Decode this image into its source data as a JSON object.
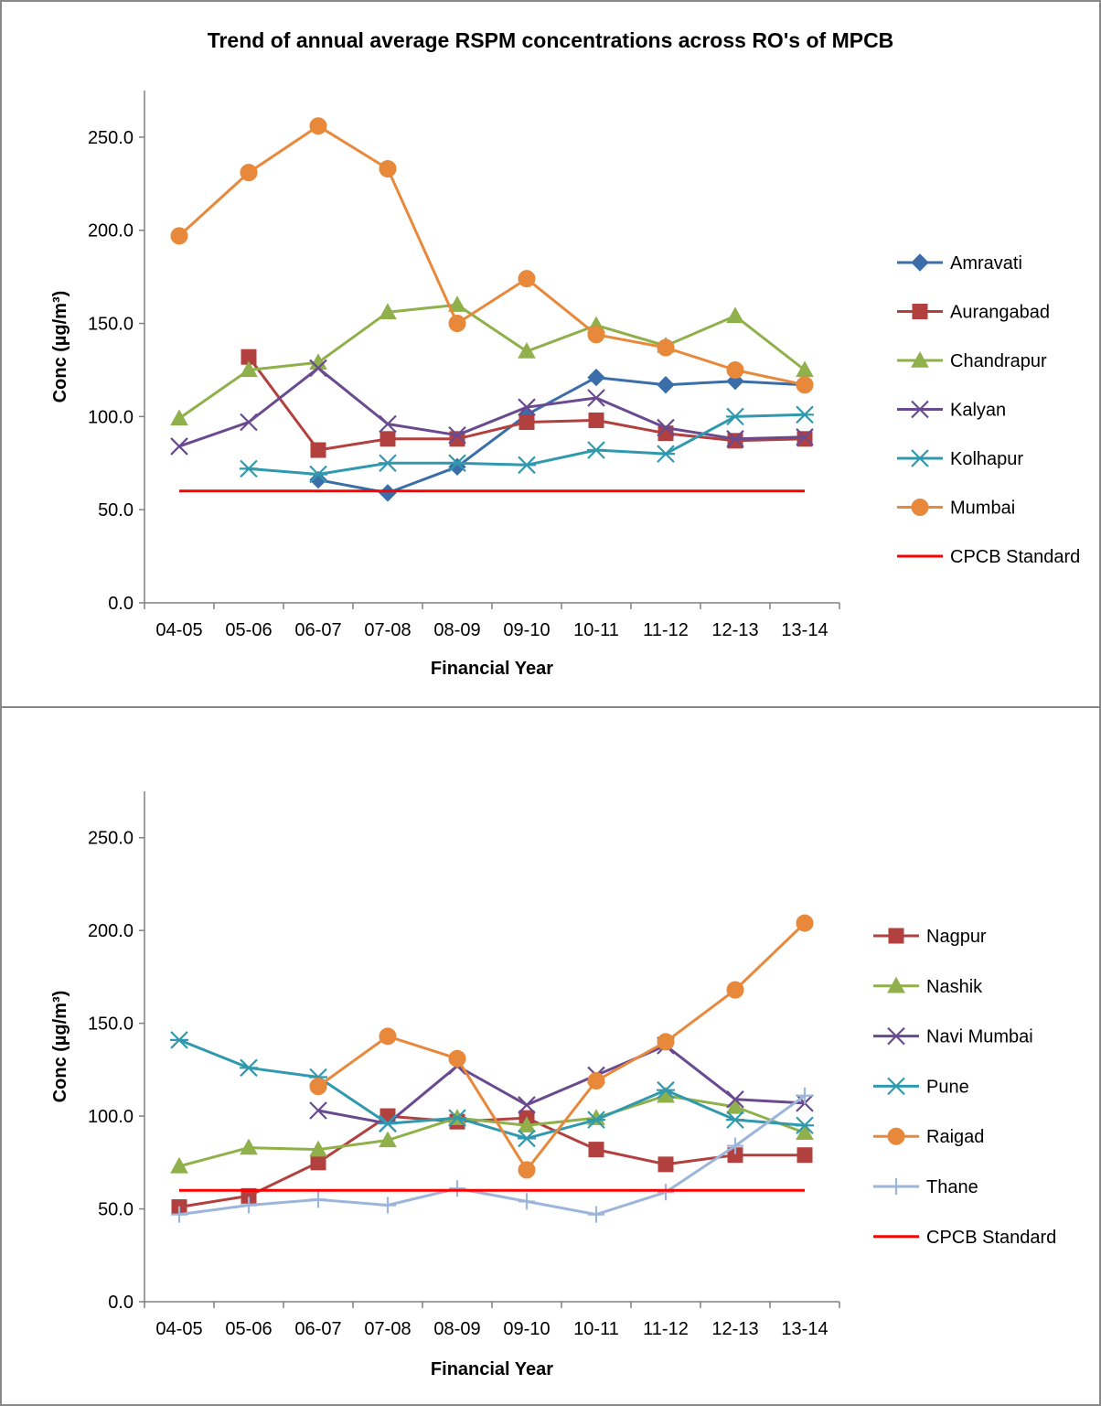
{
  "title": "Trend of annual average RSPM concentrations across RO's of MPCB",
  "chart_data": [
    {
      "type": "line",
      "title": "Trend of annual average RSPM concentrations across RO's of MPCB",
      "xlabel": "Financial Year",
      "ylabel": "Conc (µg/m³)",
      "ylim": [
        0,
        275
      ],
      "yticks": [
        "0.0",
        "50.0",
        "100.0",
        "150.0",
        "200.0",
        "250.0"
      ],
      "categories": [
        "04-05",
        "05-06",
        "06-07",
        "07-08",
        "08-09",
        "09-10",
        "10-11",
        "11-12",
        "12-13",
        "13-14"
      ],
      "grid": false,
      "legend_position": "right",
      "series": [
        {
          "name": "Amravati",
          "color": "#3B6EA8",
          "marker": "diamond",
          "values": [
            null,
            null,
            66,
            59,
            73,
            101,
            121,
            117,
            119,
            117
          ]
        },
        {
          "name": "Aurangabad",
          "color": "#B2403E",
          "marker": "square",
          "values": [
            null,
            132,
            82,
            88,
            88,
            97,
            98,
            91,
            87,
            88
          ]
        },
        {
          "name": "Chandrapur",
          "color": "#8FB04A",
          "marker": "triangle",
          "values": [
            99,
            125,
            129,
            156,
            160,
            135,
            149,
            138,
            154,
            125
          ]
        },
        {
          "name": "Kalyan",
          "color": "#6A4A8F",
          "marker": "x",
          "values": [
            84,
            97,
            126,
            96,
            90,
            105,
            110,
            94,
            88,
            89
          ]
        },
        {
          "name": "Kolhapur",
          "color": "#3199AE",
          "marker": "star",
          "values": [
            null,
            72,
            69,
            75,
            75,
            74,
            82,
            80,
            100,
            101
          ]
        },
        {
          "name": "Mumbai",
          "color": "#E8883A",
          "marker": "circle",
          "values": [
            197,
            231,
            256,
            233,
            150,
            174,
            144,
            137,
            125,
            117
          ]
        },
        {
          "name": "CPCB Standard",
          "color": "#FF0000",
          "marker": "none",
          "values": [
            60,
            60,
            60,
            60,
            60,
            60,
            60,
            60,
            60,
            60
          ]
        }
      ]
    },
    {
      "type": "line",
      "title": "",
      "xlabel": "Financial Year",
      "ylabel": "Conc (µg/m³)",
      "ylim": [
        0,
        275
      ],
      "yticks": [
        "0.0",
        "50.0",
        "100.0",
        "150.0",
        "200.0",
        "250.0"
      ],
      "categories": [
        "04-05",
        "05-06",
        "06-07",
        "07-08",
        "08-09",
        "09-10",
        "10-11",
        "11-12",
        "12-13",
        "13-14"
      ],
      "grid": false,
      "legend_position": "right",
      "series": [
        {
          "name": "Nagpur",
          "color": "#B2403E",
          "marker": "square",
          "values": [
            51,
            57,
            75,
            100,
            97,
            99,
            82,
            74,
            79,
            79
          ]
        },
        {
          "name": "Nashik",
          "color": "#8FB04A",
          "marker": "triangle",
          "values": [
            73,
            83,
            82,
            87,
            99,
            95,
            99,
            111,
            105,
            91
          ]
        },
        {
          "name": "Navi Mumbai",
          "color": "#6A4A8F",
          "marker": "x",
          "values": [
            null,
            null,
            103,
            96,
            127,
            106,
            122,
            138,
            109,
            107
          ]
        },
        {
          "name": "Pune",
          "color": "#3199AE",
          "marker": "star",
          "values": [
            141,
            126,
            121,
            96,
            99,
            88,
            98,
            114,
            98,
            95
          ]
        },
        {
          "name": "Raigad",
          "color": "#E8883A",
          "marker": "circle",
          "values": [
            null,
            null,
            116,
            143,
            131,
            71,
            119,
            140,
            168,
            204
          ]
        },
        {
          "name": "Thane",
          "color": "#9CB5DA",
          "marker": "plus",
          "values": [
            47,
            52,
            55,
            52,
            61,
            54,
            47,
            59,
            84,
            111
          ]
        },
        {
          "name": "CPCB Standard",
          "color": "#FF0000",
          "marker": "none",
          "values": [
            60,
            60,
            60,
            60,
            60,
            60,
            60,
            60,
            60,
            60
          ]
        }
      ]
    }
  ]
}
